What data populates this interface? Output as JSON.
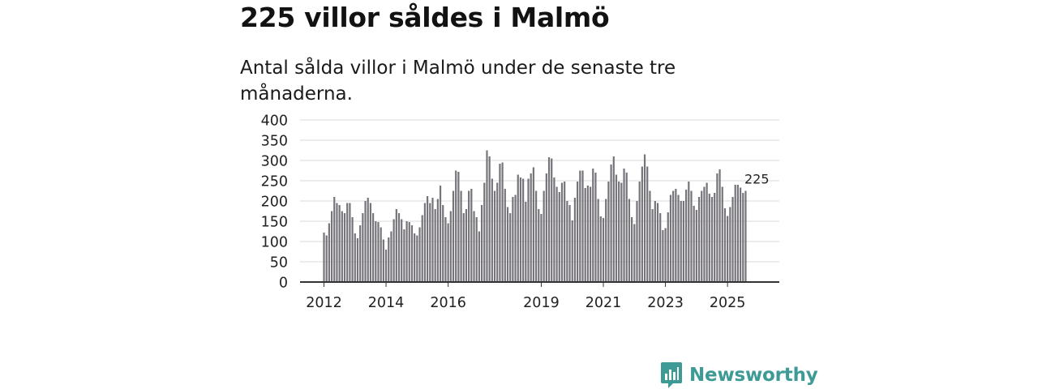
{
  "header": {
    "title": "225 villor såldes i Malmö",
    "subtitle": "Antal sålda villor i Malmö under de senaste tre månaderna."
  },
  "brand": {
    "name": "Newsworthy",
    "icon": "newsworthy-logo-icon",
    "color": "#3d9a95"
  },
  "colors": {
    "bar": "#76747a",
    "highlight": "#2a9d9c",
    "grid": "#d9d9d9",
    "axis": "#333333"
  },
  "chart_data": {
    "type": "bar",
    "title": "225 villor såldes i Malmö",
    "subtitle": "Antal sålda villor i Malmö under de senaste tre månaderna.",
    "xlabel": "",
    "ylabel": "",
    "ylim": [
      0,
      400
    ],
    "yticks": [
      0,
      50,
      100,
      150,
      200,
      250,
      300,
      350,
      400
    ],
    "grid": true,
    "legend": "none",
    "x_start": "2012-01",
    "x_step": "month",
    "xtick_labels": [
      {
        "label": "2012",
        "index": 0
      },
      {
        "label": "2014",
        "index": 24
      },
      {
        "label": "2016",
        "index": 48
      },
      {
        "label": "2019",
        "index": 84
      },
      {
        "label": "2021",
        "index": 108
      },
      {
        "label": "2023",
        "index": 132
      },
      {
        "label": "2025",
        "index": 156
      }
    ],
    "values": [
      122,
      115,
      145,
      175,
      210,
      195,
      190,
      175,
      170,
      195,
      195,
      160,
      120,
      108,
      140,
      170,
      200,
      208,
      195,
      170,
      150,
      148,
      135,
      105,
      80,
      110,
      125,
      155,
      180,
      170,
      155,
      130,
      150,
      148,
      140,
      120,
      115,
      135,
      165,
      195,
      212,
      195,
      208,
      180,
      205,
      238,
      190,
      160,
      145,
      175,
      225,
      275,
      272,
      225,
      170,
      180,
      225,
      230,
      175,
      160,
      125,
      190,
      245,
      325,
      310,
      255,
      225,
      245,
      292,
      295,
      230,
      185,
      170,
      210,
      215,
      265,
      258,
      255,
      198,
      255,
      268,
      283,
      225,
      180,
      168,
      225,
      268,
      308,
      305,
      258,
      235,
      222,
      245,
      248,
      200,
      190,
      152,
      208,
      248,
      275,
      275,
      232,
      238,
      235,
      280,
      270,
      205,
      162,
      158,
      205,
      248,
      290,
      310,
      265,
      248,
      245,
      280,
      270,
      205,
      160,
      143,
      200,
      248,
      285,
      315,
      285,
      225,
      180,
      200,
      195,
      170,
      128,
      133,
      172,
      215,
      225,
      230,
      215,
      200,
      200,
      228,
      248,
      225,
      188,
      178,
      210,
      225,
      235,
      245,
      218,
      210,
      220,
      268,
      278,
      235,
      182,
      163,
      185,
      210,
      240,
      240,
      233,
      220,
      225
    ],
    "highlight": {
      "index": 167,
      "value": 225,
      "label": "225"
    }
  }
}
